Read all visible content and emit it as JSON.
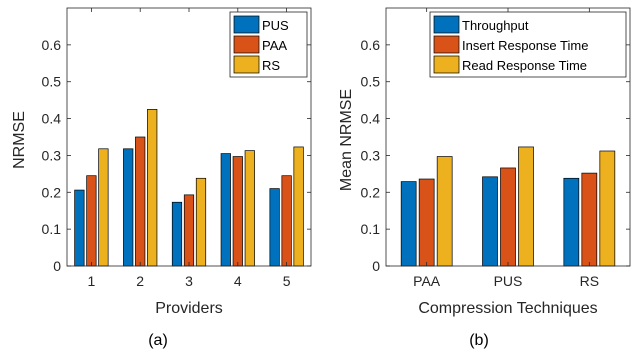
{
  "colors": {
    "series1": "#0072BD",
    "series2": "#D95319",
    "series3": "#EDB120",
    "axis": "#262626"
  },
  "chart_data": [
    {
      "type": "bar",
      "caption": "(a)",
      "title": "",
      "xlabel": "Providers",
      "ylabel": "NRMSE",
      "ylim": [
        0,
        0.7
      ],
      "yticks": [
        "0",
        "0.1",
        "0.2",
        "0.3",
        "0.4",
        "0.5",
        "0.6"
      ],
      "categories": [
        "1",
        "2",
        "3",
        "4",
        "5"
      ],
      "legend_position": "top-right",
      "grid": false,
      "series": [
        {
          "name": "PUS",
          "values": [
            0.206,
            0.318,
            0.173,
            0.305,
            0.21
          ]
        },
        {
          "name": "PAA",
          "values": [
            0.245,
            0.35,
            0.193,
            0.297,
            0.245
          ]
        },
        {
          "name": "RS",
          "values": [
            0.318,
            0.425,
            0.238,
            0.313,
            0.323
          ]
        }
      ]
    },
    {
      "type": "bar",
      "caption": "(b)",
      "title": "",
      "xlabel": "Compression Techniques",
      "ylabel": "Mean NRMSE",
      "ylim": [
        0,
        0.7
      ],
      "yticks": [
        "0",
        "0.1",
        "0.2",
        "0.3",
        "0.4",
        "0.5",
        "0.6"
      ],
      "categories": [
        "PAA",
        "PUS",
        "RS"
      ],
      "legend_position": "top-right",
      "grid": false,
      "series": [
        {
          "name": "Throughput",
          "values": [
            0.229,
            0.242,
            0.238
          ]
        },
        {
          "name": "Insert Response Time",
          "values": [
            0.236,
            0.266,
            0.252
          ]
        },
        {
          "name": "Read Response Time",
          "values": [
            0.297,
            0.323,
            0.312
          ]
        }
      ]
    }
  ]
}
